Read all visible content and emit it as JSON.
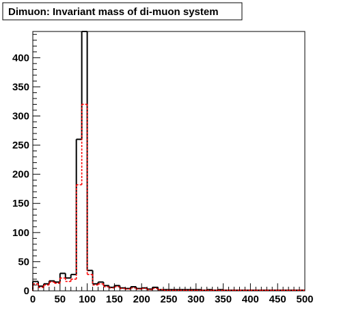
{
  "chart_data": {
    "type": "bar",
    "title": "Dimuon: Invariant mass of di-muon system",
    "xlabel": "",
    "ylabel": "",
    "xlim": [
      0,
      500
    ],
    "ylim": [
      0,
      445
    ],
    "bin_width": 10,
    "x_ticks": [
      0,
      50,
      100,
      150,
      200,
      250,
      300,
      350,
      400,
      450,
      500
    ],
    "y_ticks": [
      0,
      50,
      100,
      150,
      200,
      250,
      300,
      350,
      400
    ],
    "grid": false,
    "legend": "none",
    "series": [
      {
        "style": "solid",
        "color": "#000000",
        "bin_edges_start": 0,
        "values": [
          16,
          8,
          12,
          17,
          15,
          30,
          22,
          28,
          260,
          445,
          35,
          12,
          15,
          9,
          6,
          9,
          5,
          4,
          7,
          4,
          5,
          3,
          6,
          2,
          2,
          2,
          2,
          2,
          2,
          2,
          2,
          1,
          2,
          1,
          2,
          1,
          1,
          1,
          1,
          1,
          1,
          1,
          1,
          1,
          1,
          1,
          1,
          1,
          1,
          1
        ]
      },
      {
        "style": "dashed",
        "color": "#ff0000",
        "bin_edges_start": 0,
        "values": [
          12,
          6,
          10,
          15,
          13,
          22,
          16,
          20,
          182,
          320,
          28,
          10,
          12,
          7,
          5,
          7,
          4,
          3,
          5,
          3,
          4,
          2,
          4,
          2,
          1,
          1,
          1,
          1,
          1,
          1,
          1,
          1,
          1,
          1,
          1,
          1,
          1,
          1,
          1,
          1,
          1,
          1,
          1,
          1,
          1,
          1,
          1,
          1,
          1,
          1
        ]
      }
    ]
  }
}
